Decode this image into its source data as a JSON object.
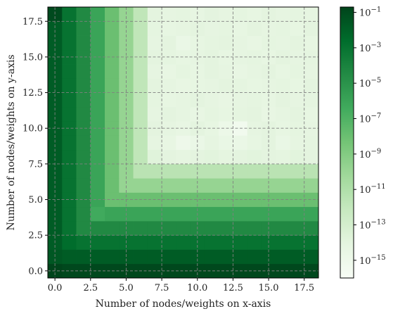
{
  "chart_data": {
    "type": "heatmap",
    "title": "",
    "xlabel": "Number of nodes/weights on x-axis",
    "ylabel": "Number of nodes/weights on y-axis",
    "x_range": [
      -0.5,
      18.5
    ],
    "y_range": [
      -0.5,
      18.5
    ],
    "x_ticks": [
      0.0,
      2.5,
      5.0,
      7.5,
      10.0,
      12.5,
      15.0,
      17.5
    ],
    "y_ticks": [
      0.0,
      2.5,
      5.0,
      7.5,
      10.0,
      12.5,
      15.0,
      17.5
    ],
    "x_tick_labels": [
      "0.0",
      "2.5",
      "5.0",
      "7.5",
      "10.0",
      "12.5",
      "15.0",
      "17.5"
    ],
    "y_tick_labels": [
      "0.0",
      "2.5",
      "5.0",
      "7.5",
      "10.0",
      "12.5",
      "15.0",
      "17.5"
    ],
    "grid": true,
    "colormap": "Greens",
    "colormap_stops": [
      "#f7fcf5",
      "#e5f5e0",
      "#c7e9c0",
      "#a1d99b",
      "#74c476",
      "#41ab5d",
      "#238b45",
      "#006d2c",
      "#00441b"
    ],
    "color_scale": "log",
    "color_log10_range": [
      -16,
      -0.7
    ],
    "colorbar_ticks": [
      -1,
      -3,
      -5,
      -7,
      -9,
      -11,
      -13,
      -15
    ],
    "colorbar_tick_labels": [
      "10^-1",
      "10^-3",
      "10^-5",
      "10^-7",
      "10^-9",
      "10^-11",
      "10^-13",
      "10^-15"
    ],
    "description": "19 x 19 grid of log10 values; row index is y (0 at bottom), column index is x",
    "log10_values": [
      [
        -0.7,
        -0.9,
        -0.9,
        -0.9,
        -0.9,
        -0.9,
        -0.9,
        -0.9,
        -0.9,
        -0.9,
        -0.9,
        -0.9,
        -0.9,
        -0.9,
        -0.9,
        -0.9,
        -0.9,
        -0.9,
        -0.9
      ],
      [
        -1.6,
        -1.8,
        -1.8,
        -1.8,
        -1.8,
        -1.8,
        -1.8,
        -1.8,
        -1.8,
        -1.8,
        -1.8,
        -1.8,
        -1.8,
        -1.8,
        -1.8,
        -1.8,
        -1.8,
        -1.8,
        -1.8
      ],
      [
        -1.8,
        -2.6,
        -3.0,
        -3.0,
        -3.0,
        -3.0,
        -3.0,
        -3.0,
        -3.0,
        -3.0,
        -3.0,
        -3.0,
        -3.0,
        -3.0,
        -3.0,
        -3.0,
        -3.0,
        -3.0,
        -3.0
      ],
      [
        -1.8,
        -3.0,
        -4.4,
        -4.4,
        -4.4,
        -4.4,
        -4.4,
        -4.4,
        -4.4,
        -4.4,
        -4.4,
        -4.4,
        -4.4,
        -4.4,
        -4.4,
        -4.4,
        -4.4,
        -4.4,
        -4.4
      ],
      [
        -1.8,
        -3.0,
        -4.4,
        -6.4,
        -6.0,
        -6.0,
        -6.0,
        -6.0,
        -6.0,
        -6.0,
        -6.0,
        -6.0,
        -6.0,
        -6.0,
        -6.0,
        -6.0,
        -6.0,
        -6.0,
        -6.0
      ],
      [
        -1.8,
        -3.0,
        -4.4,
        -6.0,
        -8.0,
        -8.0,
        -8.0,
        -8.0,
        -8.0,
        -8.0,
        -8.0,
        -8.0,
        -8.0,
        -8.0,
        -8.0,
        -8.0,
        -8.0,
        -8.0,
        -8.0
      ],
      [
        -1.8,
        -3.0,
        -4.4,
        -6.0,
        -8.0,
        -9.8,
        -9.8,
        -9.8,
        -9.8,
        -9.8,
        -9.8,
        -9.8,
        -9.8,
        -9.8,
        -9.8,
        -9.8,
        -9.8,
        -9.8,
        -9.8
      ],
      [
        -1.8,
        -3.0,
        -4.4,
        -6.0,
        -8.0,
        -9.8,
        -11.5,
        -11.5,
        -11.5,
        -11.5,
        -11.5,
        -11.5,
        -11.5,
        -11.5,
        -11.5,
        -11.5,
        -11.5,
        -11.5,
        -11.5
      ],
      [
        -1.8,
        -3.0,
        -4.4,
        -6.0,
        -8.0,
        -9.8,
        -11.8,
        -13.8,
        -14.0,
        -14.2,
        -14.0,
        -13.9,
        -14.1,
        -14.0,
        -13.9,
        -14.0,
        -14.1,
        -13.9,
        -14.0
      ],
      [
        -1.8,
        -3.0,
        -4.4,
        -6.0,
        -8.0,
        -9.8,
        -11.8,
        -14.2,
        -14.4,
        -15.0,
        -14.6,
        -14.2,
        -14.5,
        -14.6,
        -14.3,
        -14.0,
        -14.5,
        -14.2,
        -14.1
      ],
      [
        -1.8,
        -3.0,
        -4.4,
        -6.0,
        -8.0,
        -9.8,
        -11.8,
        -14.0,
        -14.2,
        -14.4,
        -14.0,
        -14.3,
        -14.8,
        -15.4,
        -14.2,
        -14.0,
        -14.3,
        -14.1,
        -14.2
      ],
      [
        -1.8,
        -3.0,
        -4.4,
        -6.0,
        -8.0,
        -9.8,
        -11.8,
        -14.2,
        -14.0,
        -14.2,
        -14.4,
        -14.1,
        -14.3,
        -14.1,
        -14.0,
        -14.4,
        -14.2,
        -14.0,
        -14.3
      ],
      [
        -1.8,
        -3.0,
        -4.4,
        -6.0,
        -8.0,
        -9.8,
        -11.8,
        -14.1,
        -14.3,
        -14.2,
        -14.0,
        -14.2,
        -14.4,
        -14.2,
        -14.1,
        -14.3,
        -14.0,
        -14.2,
        -14.1
      ],
      [
        -1.8,
        -3.0,
        -4.4,
        -6.0,
        -8.0,
        -9.8,
        -11.8,
        -14.0,
        -14.2,
        -14.4,
        -14.3,
        -14.2,
        -14.0,
        -14.1,
        -14.3,
        -14.2,
        -14.1,
        -14.3,
        -14.0
      ],
      [
        -1.8,
        -3.0,
        -4.4,
        -6.0,
        -8.0,
        -9.8,
        -11.8,
        -14.2,
        -14.4,
        -14.1,
        -14.3,
        -14.0,
        -14.2,
        -14.4,
        -14.2,
        -14.0,
        -14.3,
        -14.1,
        -14.2
      ],
      [
        -1.8,
        -3.0,
        -4.4,
        -6.0,
        -8.0,
        -9.8,
        -11.8,
        -14.0,
        -14.1,
        -14.3,
        -14.2,
        -14.0,
        -14.3,
        -14.2,
        -14.1,
        -14.3,
        -14.0,
        -14.2,
        -14.1
      ],
      [
        -1.8,
        -3.0,
        -4.4,
        -6.0,
        -8.0,
        -9.8,
        -11.8,
        -14.2,
        -14.0,
        -14.6,
        -14.3,
        -14.1,
        -14.0,
        -14.2,
        -14.4,
        -14.1,
        -14.2,
        -14.0,
        -14.3
      ],
      [
        -1.8,
        -3.0,
        -4.4,
        -6.0,
        -8.0,
        -9.8,
        -11.8,
        -14.1,
        -14.3,
        -14.2,
        -14.0,
        -14.2,
        -14.1,
        -14.3,
        -14.0,
        -14.2,
        -14.1,
        -14.3,
        -14.0
      ],
      [
        -1.0,
        -3.0,
        -4.4,
        -6.0,
        -8.0,
        -9.8,
        -11.8,
        -14.0,
        -14.2,
        -14.1,
        -14.3,
        -14.0,
        -14.2,
        -14.1,
        -14.3,
        -14.0,
        -14.2,
        -14.1,
        -14.2
      ]
    ]
  }
}
